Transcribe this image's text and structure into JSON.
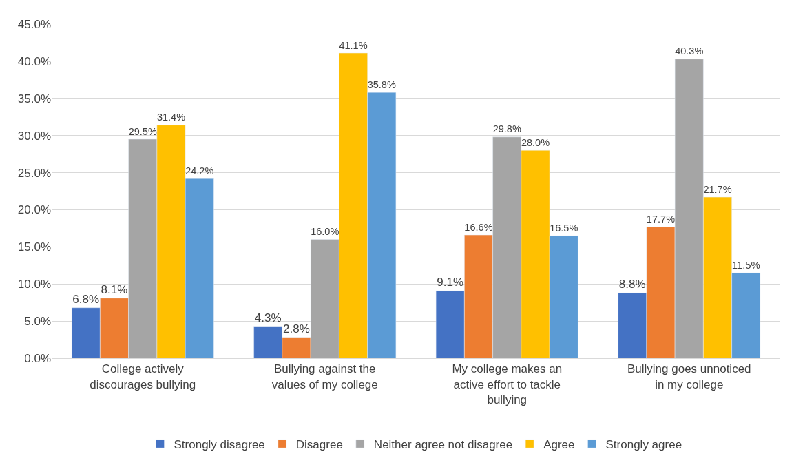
{
  "chart_data": {
    "type": "bar",
    "categories": [
      "College actively discourages bullying",
      "Bullying against the values of my college",
      "My college makes an active effort to tackle bullying",
      "Bullying goes unnoticed in my college"
    ],
    "series": [
      {
        "name": "Strongly disagree",
        "color": "#4472c4",
        "values": [
          6.8,
          4.3,
          9.1,
          8.8
        ],
        "value_labels": [
          "6.8%",
          "4.3%",
          "9.1%",
          "8.8%"
        ]
      },
      {
        "name": "Disagree",
        "color": "#ed7d31",
        "values": [
          8.1,
          2.8,
          16.6,
          17.7
        ],
        "value_labels": [
          "8.1%",
          "2.8%",
          "16.6%",
          "17.7%"
        ]
      },
      {
        "name": "Neither agree not disagree",
        "color": "#a5a5a5",
        "values": [
          29.5,
          16.0,
          29.8,
          40.3
        ],
        "value_labels": [
          "29.5%",
          "16.0%",
          "29.8%",
          "40.3%"
        ]
      },
      {
        "name": "Agree",
        "color": "#ffc000",
        "values": [
          31.4,
          41.1,
          28.0,
          21.7
        ],
        "value_labels": [
          "31.4%",
          "41.1%",
          "28.0%",
          "21.7%"
        ]
      },
      {
        "name": "Strongly agree",
        "color": "#5b9bd5",
        "values": [
          24.2,
          35.8,
          16.5,
          11.5
        ],
        "value_labels": [
          "24.2%",
          "35.8%",
          "16.5%",
          "11.5%"
        ]
      }
    ],
    "ylim": [
      0,
      45
    ],
    "yticks": [
      {
        "value": 0,
        "label": "0.0%"
      },
      {
        "value": 5,
        "label": "5.0%"
      },
      {
        "value": 10,
        "label": "10.0%"
      },
      {
        "value": 15,
        "label": "15.0%"
      },
      {
        "value": 20,
        "label": "20.0%"
      },
      {
        "value": 25,
        "label": "25.0%"
      },
      {
        "value": 30,
        "label": "30.0%"
      },
      {
        "value": 35,
        "label": "35.0%"
      },
      {
        "value": 40,
        "label": "40.0%"
      },
      {
        "value": 45,
        "label": "45.0%"
      }
    ],
    "grid": "y",
    "legend": "bottom"
  }
}
